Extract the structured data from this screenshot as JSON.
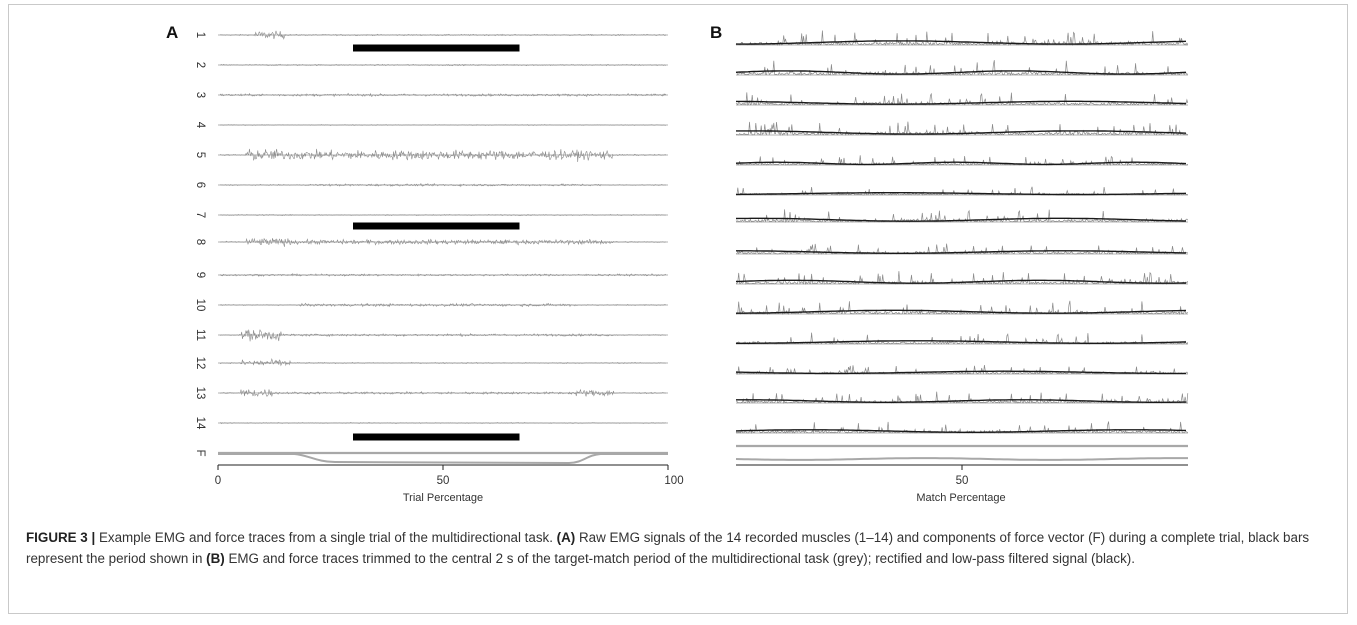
{
  "figure": {
    "panel_labels": [
      "A",
      "B"
    ],
    "colors": {
      "raw": "#8a8a8a",
      "filtered": "#1a1a1a",
      "bar": "#000000",
      "baseline": "#9a9a9a",
      "force": "#a8a8a8"
    }
  },
  "chart_data": [
    {
      "type": "line",
      "panel": "A",
      "xlabel": "Trial Percentage",
      "xlim": [
        0,
        100
      ],
      "xticks": [
        "0",
        "50",
        "100"
      ],
      "channel_labels": [
        "1",
        "2",
        "3",
        "4",
        "5",
        "6",
        "7",
        "8",
        "9",
        "10",
        "11",
        "12",
        "13",
        "14",
        "F"
      ],
      "black_bar_range": [
        30,
        67
      ],
      "force_low_range": [
        20,
        82
      ]
    },
    {
      "type": "line",
      "panel": "B",
      "xlabel": "Match Percentage",
      "xticks": [
        "50"
      ],
      "traces": 14
    }
  ],
  "caption": {
    "label": "FIGURE 3 |",
    "p1": " Example EMG and force traces from a single trial of the multidirectional task. ",
    "a_label": "(A)",
    "p2": " Raw EMG signals of the 14 recorded muscles (1–14) and components of force vector (F) during a complete trial, black bars represent the period shown in ",
    "b_label": "(B)",
    "p3": " EMG and force traces trimmed to the central 2 s of the target-match period of the multidirectional task (grey); rectified and low-pass filtered signal (black)."
  }
}
